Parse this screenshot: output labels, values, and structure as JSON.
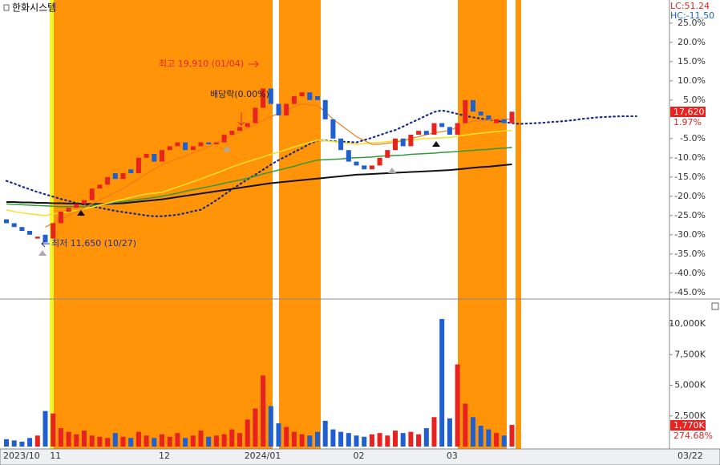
{
  "chart_data": [
    {
      "type": "candlestick",
      "title": "한화시스템",
      "categories": [
        "2023/10",
        null,
        null,
        null,
        null,
        null,
        "11",
        null,
        null,
        null,
        null,
        null,
        null,
        null,
        null,
        null,
        null,
        null,
        null,
        null,
        "12",
        null,
        null,
        null,
        null,
        null,
        null,
        null,
        null,
        null,
        null,
        "2024/01",
        null,
        null,
        null,
        null,
        null,
        null,
        null,
        null,
        null,
        null,
        null,
        null,
        null,
        "02",
        null,
        null,
        null,
        null,
        null,
        null,
        null,
        null,
        null,
        null,
        null,
        "03",
        null,
        null,
        null,
        null,
        null,
        null,
        null,
        null,
        null,
        null,
        null,
        null,
        null,
        null,
        null,
        null,
        null,
        null,
        null,
        null,
        null,
        null,
        null,
        null
      ],
      "x_end_label": "03/22",
      "open": [
        -26,
        -27,
        -28,
        -29,
        -31,
        -30,
        -31,
        -27,
        -24,
        -23,
        -22,
        -21,
        -18,
        -17,
        -14,
        -15.5,
        -13,
        -14,
        -10,
        -9,
        -11,
        -8,
        -7,
        -6,
        -8,
        -7,
        -6,
        -6.5,
        -6,
        -4,
        -3,
        -2,
        -1,
        3,
        8,
        4,
        1,
        4,
        6,
        7,
        6,
        5,
        0,
        -5,
        -8,
        -11,
        -12,
        -13,
        -12,
        -10,
        -8,
        -5,
        -7,
        -4,
        -3,
        -4,
        -1,
        -2,
        -4,
        -1,
        5,
        2,
        1,
        -1,
        0,
        -1,
        null,
        null,
        null,
        null,
        null,
        null,
        null,
        null,
        null,
        null,
        null,
        null,
        null,
        null,
        null,
        null
      ],
      "close": [
        -27,
        -28,
        -29,
        -30,
        -30.5,
        -32,
        -27,
        -24,
        -23,
        -22,
        -21,
        -18,
        -17,
        -15,
        -15.5,
        -14,
        -14,
        -10,
        -9,
        -11,
        -8,
        -7,
        -6,
        -8,
        -7,
        -6,
        -6.5,
        -6,
        -4,
        -3,
        -2,
        -1,
        3,
        8,
        4,
        1,
        4,
        6,
        7,
        5,
        5,
        0,
        -5,
        -8,
        -11,
        -12,
        -13,
        -12,
        -10,
        -8,
        -5,
        -7,
        -4,
        -3,
        -4,
        -1,
        -2,
        -4,
        -1,
        5,
        2,
        1,
        0,
        0,
        -1,
        1.97,
        null,
        null,
        null,
        null,
        null,
        null,
        null,
        null,
        null,
        null,
        null,
        null,
        null,
        null,
        null,
        null
      ],
      "up_color": "#e8231f",
      "down_color": "#1f5fd0",
      "series": [
        {
          "color": "#1a2a8a",
          "style": "dotted",
          "values": [
            -16,
            -16.7,
            -17.5,
            -18.2,
            -18.9,
            -19.5,
            -20.1,
            -20.7,
            -21.2,
            -21.8,
            -22.2,
            -22.6,
            -23,
            -23.4,
            -23.8,
            -24.1,
            -24.4,
            -24.7,
            -25,
            -25.2,
            -25.2,
            -25,
            -24.8,
            -24.4,
            -23.9,
            -23.5,
            -22.3,
            -21,
            -19.6,
            -18.2,
            -16.9,
            -15.6,
            -14.4,
            -13.1,
            -11.8,
            -10.6,
            -9.6,
            -8.5,
            -7.5,
            -6.4,
            -5.5,
            -5.5,
            -5.7,
            -5.8,
            -5.9,
            -6,
            -5.4,
            -4.8,
            -4.1,
            -3.4,
            -2.8,
            -1.9,
            -0.9,
            0,
            1,
            1.9,
            2.3,
            1.9,
            1.4,
            0.9,
            0.5,
            0.2,
            -0.1,
            -0.4,
            -0.7,
            -1,
            -1.2,
            -1.1,
            -1,
            -0.9,
            -0.7,
            -0.6,
            -0.4,
            -0.2,
            0.1,
            0.3,
            0.5,
            0.6,
            0.7,
            0.8,
            0.8,
            0.8
          ]
        },
        {
          "color": "#111111",
          "style": "solid",
          "width": 2,
          "values": [
            -21.5,
            -21.5,
            -21.6,
            -21.6,
            -21.7,
            -21.7,
            -21.8,
            -21.8,
            -21.9,
            -21.9,
            -22,
            -22,
            -22,
            -22,
            -21.9,
            -21.8,
            -21.6,
            -21.4,
            -21.2,
            -21,
            -20.8,
            -20.5,
            -20.2,
            -19.9,
            -19.6,
            -19.3,
            -19,
            -18.7,
            -18.4,
            -18.1,
            -17.8,
            -17.5,
            -17.2,
            -16.9,
            -16.6,
            -16.4,
            -16.2,
            -16,
            -15.8,
            -15.6,
            -15.4,
            -15.2,
            -15,
            -14.8,
            -14.6,
            -14.4,
            -14.3,
            -14.2,
            -14.1,
            -14,
            -13.9,
            -13.8,
            -13.7,
            -13.6,
            -13.5,
            -13.4,
            -13.3,
            -13.2,
            -13,
            -12.8,
            -12.6,
            -12.4,
            -12.3,
            -12.1,
            -11.9,
            -11.7,
            null,
            null,
            null,
            null,
            null,
            null,
            null,
            null,
            null,
            null,
            null,
            null,
            null,
            null,
            null,
            null
          ]
        },
        {
          "color": "#2e9a3a",
          "style": "solid",
          "width": 1.5,
          "values": [
            -22,
            -22.1,
            -22.2,
            -22.3,
            -22.4,
            -22.5,
            -22.6,
            -22.7,
            -22.7,
            -22.7,
            -22.7,
            -22.4,
            -22.2,
            -21.9,
            -21.6,
            -21.4,
            -21.1,
            -20.8,
            -20.6,
            -20.3,
            -20,
            -19.6,
            -19.2,
            -18.7,
            -18.3,
            -17.9,
            -17.5,
            -17.1,
            -16.6,
            -16.2,
            -15.8,
            -15.3,
            -14.8,
            -14.2,
            -13.7,
            -13.2,
            -12.7,
            -12.2,
            -11.6,
            -11.1,
            -10.6,
            -10.5,
            -10.4,
            -10.3,
            -10.1,
            -10,
            -9.9,
            -9.8,
            -9.6,
            -9.5,
            -9.4,
            -9.3,
            -9.1,
            -9,
            -8.9,
            -8.8,
            -8.6,
            -8.5,
            -8.4,
            -8.2,
            -8.1,
            -7.9,
            -7.8,
            -7.6,
            -7.5,
            -7.3,
            null,
            null,
            null,
            null,
            null,
            null,
            null,
            null,
            null,
            null,
            null,
            null,
            null,
            null,
            null,
            null
          ]
        },
        {
          "color": "#f5e12a",
          "style": "solid",
          "width": 1.5,
          "values": [
            -23.5,
            -24,
            -24.3,
            -24.6,
            -24.8,
            -25,
            -24.6,
            -24.3,
            -24,
            -23.7,
            -23.3,
            -22.8,
            -22.3,
            -21.8,
            -21.3,
            -20.8,
            -20.3,
            -19.8,
            -19.4,
            -19.2,
            -19,
            -18.3,
            -17.6,
            -16.9,
            -16.2,
            -15.5,
            -14.7,
            -14,
            -13.2,
            -12.4,
            -11.7,
            -11,
            -10.4,
            -9.8,
            -9.1,
            -8.5,
            -7.9,
            -7.2,
            -6.6,
            -6,
            -5.4,
            -5.6,
            -5.8,
            -6,
            -6.3,
            -6.5,
            -6.3,
            -6.1,
            -6,
            -5.8,
            -5.6,
            -5.5,
            -5.3,
            -5.2,
            -5,
            -4.9,
            -4.8,
            -4.7,
            -4.4,
            -4.1,
            -3.8,
            -3.6,
            -3.4,
            -3.2,
            -3,
            -2.9,
            null,
            null,
            null,
            null,
            null,
            null,
            null,
            null,
            null,
            null,
            null,
            null,
            null,
            null,
            null,
            null
          ]
        },
        {
          "color": "#f07a1a",
          "style": "solid",
          "width": 1.2,
          "values": [
            null,
            null,
            null,
            null,
            null,
            -28,
            -27,
            -26,
            -25,
            -24,
            -23,
            -22,
            -21,
            -20,
            -19,
            -18,
            -16.7,
            -15.5,
            -14.2,
            -13,
            -11.7,
            -11,
            -10.2,
            -9.5,
            -8.7,
            -8,
            -7,
            -6.1,
            -5.2,
            -4.2,
            -3.3,
            -2.3,
            -1.3,
            -0.3,
            0.7,
            1.5,
            2.5,
            3.3,
            4,
            3.8,
            3.5,
            2,
            0,
            -1.5,
            -3,
            -4.5,
            -5.5,
            -6.5,
            -6.5,
            -6.2,
            -6,
            -5.5,
            -5,
            -4.5,
            -4,
            -3.5,
            -3.2,
            -2.9,
            -2,
            -1,
            -0.5,
            -0.3,
            -0.2,
            -0.1,
            0,
            0,
            null,
            null,
            null,
            null,
            null,
            null,
            null,
            null,
            null,
            null,
            null,
            null,
            null,
            null,
            null,
            null
          ]
        }
      ],
      "ylim": [
        -46.5,
        31
      ],
      "yticks": [
        {
          "value": 25,
          "label": "25.0%"
        },
        {
          "value": 20,
          "label": "20.0%"
        },
        {
          "value": 15,
          "label": "15.0%"
        },
        {
          "value": 10,
          "label": "10.0%"
        },
        {
          "value": 5,
          "label": "5.0%"
        },
        {
          "value": -5,
          "label": "-5.0%"
        },
        {
          "value": -10,
          "label": "-10.0%"
        },
        {
          "value": -15,
          "label": "-15.0%"
        },
        {
          "value": -20,
          "label": "-20.0%"
        },
        {
          "value": -25,
          "label": "-25.0%"
        },
        {
          "value": -30,
          "label": "-30.0%"
        },
        {
          "value": -35,
          "label": "-35.0%"
        },
        {
          "value": -40,
          "label": "-40.0%"
        },
        {
          "value": -45,
          "label": "-45.0%"
        }
      ],
      "labels": {
        "lc": "LC:51.24",
        "hc": "HC:-11.50",
        "last_price": "17,620",
        "last_change": "1.97%"
      },
      "annotations": [
        "최고 19,910 (01/04)",
        "배당락(0.00%)",
        "최저 11,650 (10/27)"
      ]
    },
    {
      "type": "bar",
      "values": [
        600,
        500,
        400,
        700,
        900,
        2900,
        2700,
        1500,
        1200,
        1000,
        1300,
        900,
        800,
        700,
        1100,
        800,
        700,
        1200,
        900,
        700,
        1000,
        800,
        1100,
        700,
        900,
        1300,
        800,
        900,
        1000,
        1400,
        1100,
        2200,
        3100,
        5800,
        3300,
        1900,
        1600,
        1200,
        1000,
        900,
        1200,
        2100,
        1400,
        1200,
        1100,
        900,
        800,
        1000,
        1100,
        900,
        1300,
        1100,
        1200,
        1000,
        1500,
        2400,
        10400,
        2300,
        6700,
        3500,
        2400,
        1700,
        1400,
        1100,
        900,
        1770
      ],
      "ylim": [
        0,
        11900
      ],
      "yticks": [
        {
          "value": 10000,
          "label": "10,000K"
        },
        {
          "value": 7500,
          "label": "7,500K"
        },
        {
          "value": 5000,
          "label": "5,000K"
        },
        {
          "value": 2500,
          "label": "2,500K"
        }
      ],
      "labels": {
        "last_volume": "1,770K",
        "volume_ratio": "274.68%"
      }
    }
  ]
}
